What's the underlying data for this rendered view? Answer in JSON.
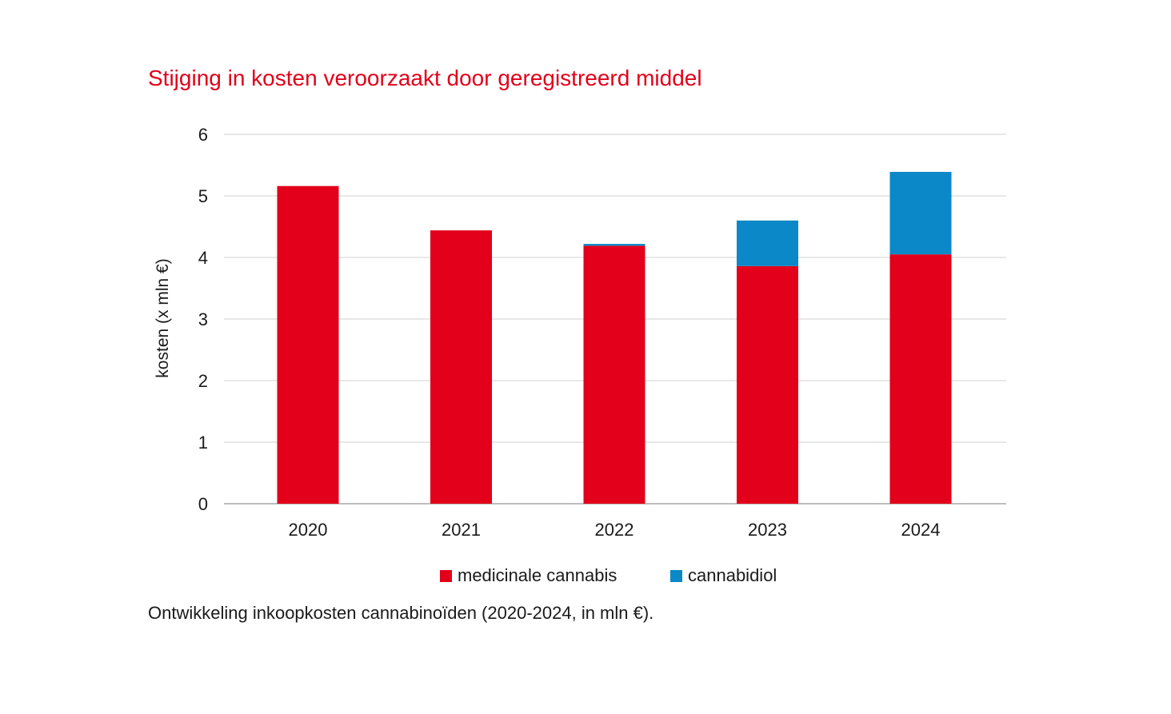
{
  "chart_data": {
    "type": "bar",
    "stacked": true,
    "title": "Stijging in kosten veroorzaakt door geregistreerd middel",
    "caption": "Ontwikkeling inkoopkosten cannabinoïden (2020-2024, in mln €).",
    "xlabel": "",
    "ylabel": "kosten (x mln €)",
    "ylim": [
      0,
      6
    ],
    "yticks": [
      0,
      1,
      2,
      3,
      4,
      5,
      6
    ],
    "grid": true,
    "legend_position": "bottom",
    "categories": [
      "2020",
      "2021",
      "2022",
      "2023",
      "2024"
    ],
    "series": [
      {
        "name": "medicinale cannabis",
        "color": "#e2001a",
        "values": [
          5.16,
          4.44,
          4.19,
          3.86,
          4.05
        ]
      },
      {
        "name": "cannabidiol",
        "color": "#0a88c8",
        "values": [
          0.0,
          0.0,
          0.03,
          0.74,
          1.34
        ]
      }
    ]
  }
}
